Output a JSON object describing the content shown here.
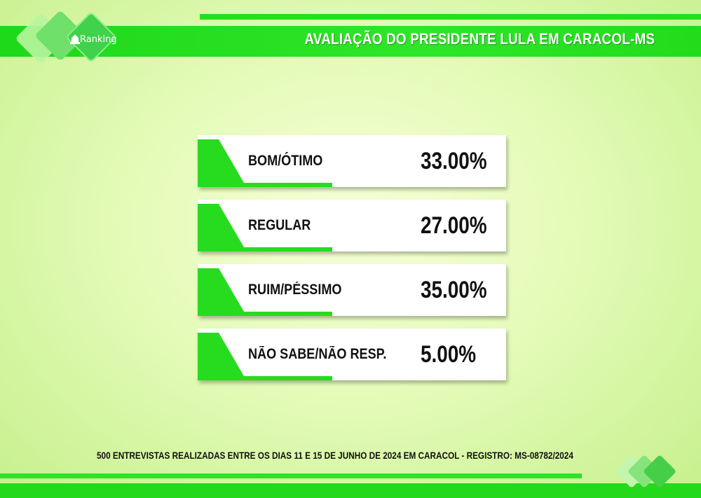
{
  "header": {
    "title": "AVALIAÇÃO DO PRESIDENTE LULA EM CARACOL-MS"
  },
  "logo": {
    "text": "Ranking",
    "icon": "ranking-logo-icon"
  },
  "colors": {
    "accent_green": "#22dc1c",
    "background_light": "#eefccc",
    "card_white": "#ffffff",
    "text_dark": "#111111"
  },
  "chart_data": {
    "type": "table",
    "title": "AVALIAÇÃO DO PRESIDENTE LULA EM CARACOL-MS",
    "categories": [
      "BOM/ÓTIMO",
      "REGULAR",
      "RUIM/PÉSSIMO",
      "NÃO SABE/NÃO RESP."
    ],
    "values": [
      33.0,
      27.0,
      35.0,
      5.0
    ],
    "value_labels": [
      "33.00%",
      "27.00%",
      "35.00%",
      "5.00%"
    ]
  },
  "footer": {
    "note": "500 ENTREVISTAS REALIZADAS ENTRE OS DIAS 11 E 15 DE JUNHO DE 2024 EM CARACOL - REGISTRO: MS-08782/2024"
  }
}
